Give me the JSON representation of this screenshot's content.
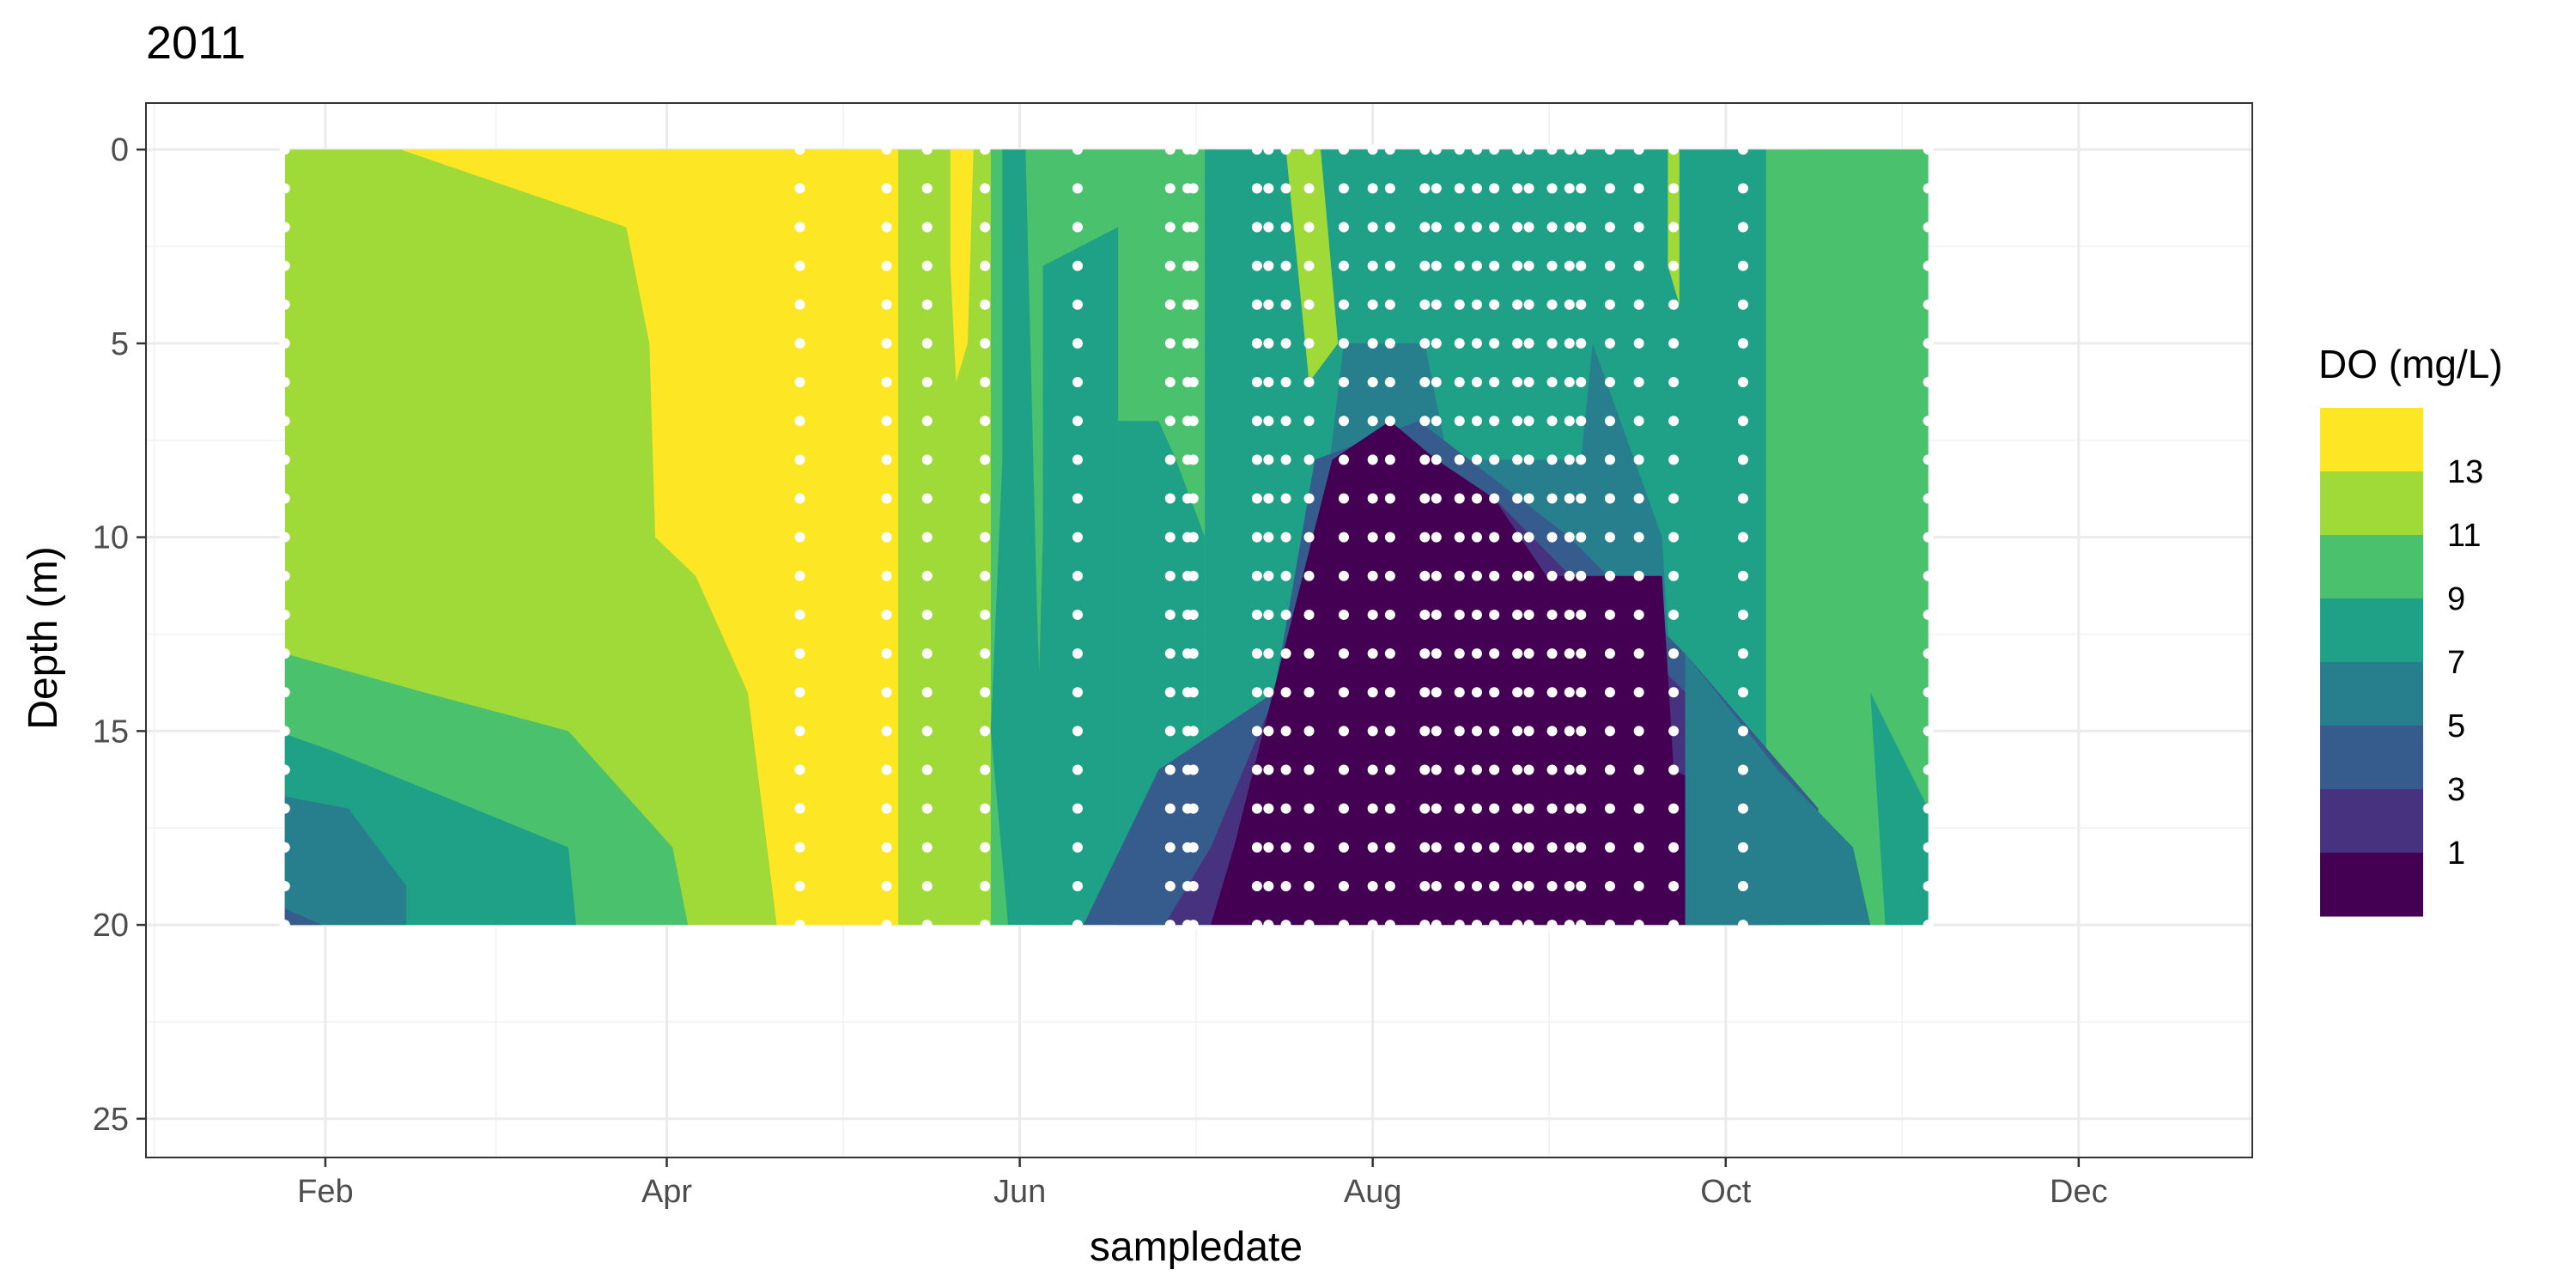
{
  "chart_data": {
    "type": "heatmap",
    "title": "2011",
    "xlabel": "sampledate",
    "ylabel": "Depth (m)",
    "xlim": [
      "2011-01-01",
      "2011-12-31"
    ],
    "ylim": [
      26,
      -1.2
    ],
    "y_reversed": true,
    "grid": true,
    "legend_position": "right",
    "x_ticks": [
      {
        "date": "2011-02-01",
        "label": "Feb"
      },
      {
        "date": "2011-04-01",
        "label": "Apr"
      },
      {
        "date": "2011-06-01",
        "label": "Jun"
      },
      {
        "date": "2011-08-01",
        "label": "Aug"
      },
      {
        "date": "2011-10-01",
        "label": "Oct"
      },
      {
        "date": "2011-12-01",
        "label": "Dec"
      }
    ],
    "y_ticks": [
      0,
      5,
      10,
      15,
      20,
      25
    ],
    "legend": {
      "title": "DO (mg/L)",
      "breaks": [
        13,
        11,
        9,
        7,
        5,
        3,
        1
      ],
      "colors": [
        "#fde725",
        "#a0da39",
        "#4ac16d",
        "#1fa187",
        "#277f8e",
        "#365c8d",
        "#46327e",
        "#440154"
      ]
    },
    "sample_dates": [
      "2011-01-25",
      "2011-04-24",
      "2011-05-09",
      "2011-05-16",
      "2011-05-26",
      "2011-06-11",
      "2011-06-27",
      "2011-06-30",
      "2011-07-01",
      "2011-07-12",
      "2011-07-14",
      "2011-07-17",
      "2011-07-21",
      "2011-07-27",
      "2011-08-01",
      "2011-08-04",
      "2011-08-10",
      "2011-08-12",
      "2011-08-16",
      "2011-08-19",
      "2011-08-22",
      "2011-08-26",
      "2011-08-28",
      "2011-09-01",
      "2011-09-04",
      "2011-09-06",
      "2011-09-11",
      "2011-09-16",
      "2011-09-22",
      "2011-10-04",
      "2011-11-05"
    ],
    "sample_depth_step": 1,
    "sample_depth_max": 20,
    "contour_bands": [
      {
        "level": "13+",
        "color": "#fde725",
        "boundary": [
          [
            "2011-02-14",
            0
          ],
          [
            "2011-05-11",
            0
          ],
          [
            "2011-05-11",
            20
          ],
          [
            "2011-04-20",
            20
          ],
          [
            "2011-04-15",
            14
          ],
          [
            "2011-04-06",
            11
          ],
          [
            "2011-03-30",
            10
          ],
          [
            "2011-03-29",
            5
          ],
          [
            "2011-03-25",
            2
          ]
        ]
      },
      {
        "level": "13+",
        "color": "#fde725",
        "boundary": [
          [
            "2011-05-20",
            0
          ],
          [
            "2011-05-24",
            0
          ],
          [
            "2011-05-23",
            5
          ],
          [
            "2011-05-21",
            6
          ],
          [
            "2011-05-20",
            3
          ]
        ]
      },
      {
        "level": "11-13",
        "color": "#a0da39",
        "boundary": [
          [
            "2011-07-19",
            0
          ],
          [
            "2011-07-23",
            0
          ],
          [
            "2011-07-25",
            5
          ],
          [
            "2011-07-22",
            4
          ]
        ]
      },
      {
        "level": "5-7",
        "color": "#277f8e",
        "boundary": [
          [
            "2011-07-27",
            5
          ],
          [
            "2011-08-10",
            5
          ],
          [
            "2011-08-14",
            8
          ],
          [
            "2011-09-06",
            8
          ],
          [
            "2011-09-08",
            5
          ],
          [
            "2011-09-20",
            10
          ],
          [
            "2011-09-24",
            20
          ],
          [
            "2011-07-20",
            20
          ],
          [
            "2011-07-23",
            10
          ]
        ]
      },
      {
        "level": "3-5",
        "color": "#365c8d",
        "boundary": [
          [
            "2011-06-12",
            20
          ],
          [
            "2011-06-25",
            16
          ],
          [
            "2011-07-15",
            14
          ],
          [
            "2011-07-22",
            8
          ],
          [
            "2011-08-09",
            7
          ],
          [
            "2011-09-04",
            10
          ],
          [
            "2011-09-24",
            13
          ],
          [
            "2011-10-17",
            17
          ],
          [
            "2011-10-17",
            20
          ]
        ]
      },
      {
        "level": "1-3",
        "color": "#46327e",
        "boundary": [
          [
            "2011-06-26",
            20
          ],
          [
            "2011-07-04",
            18
          ],
          [
            "2011-07-21",
            12
          ],
          [
            "2011-08-01",
            8
          ],
          [
            "2011-08-22",
            9
          ],
          [
            "2011-09-24",
            14
          ],
          [
            "2011-10-14",
            19
          ],
          [
            "2011-10-14",
            20
          ]
        ]
      },
      {
        "level": "0-1",
        "color": "#440154",
        "boundary": [
          [
            "2011-07-04",
            20
          ],
          [
            "2011-07-08",
            18
          ],
          [
            "2011-07-25",
            8
          ],
          [
            "2011-08-04",
            7
          ],
          [
            "2011-08-12",
            8
          ],
          [
            "2011-08-22",
            9
          ],
          [
            "2011-08-31",
            11
          ],
          [
            "2011-09-20",
            11
          ],
          [
            "2011-09-22",
            16
          ],
          [
            "2011-10-05",
            17
          ],
          [
            "2011-10-10",
            20
          ]
        ]
      }
    ]
  }
}
